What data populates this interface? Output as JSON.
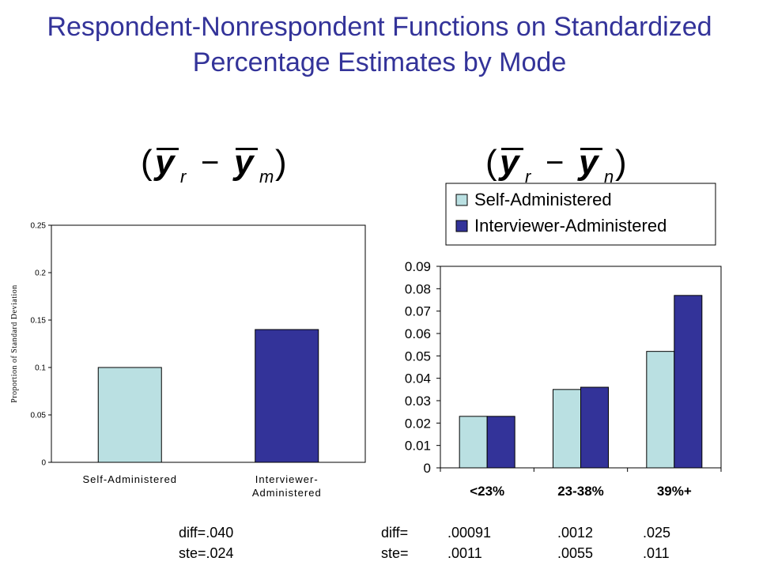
{
  "title": "Respondent-Nonrespondent Functions on Standardized Percentage Estimates by Mode",
  "formulas": {
    "left": {
      "y": "y",
      "sub1": "r",
      "minus": "−",
      "sub2": "m"
    },
    "right": {
      "y": "y",
      "sub1": "r",
      "minus": "−",
      "sub2": "n"
    }
  },
  "colors": {
    "title": "#333399",
    "self": "#BAE0E2",
    "interviewer": "#333399"
  },
  "chart_data": [
    {
      "type": "bar",
      "categories": [
        "Self-Administered",
        "Interviewer-Administered"
      ],
      "category_labels": [
        [
          "Self-Administered"
        ],
        [
          "Interviewer-",
          "Administered"
        ]
      ],
      "values": [
        0.1,
        0.14
      ],
      "ylabel": "Proportion of Standard Deviation",
      "ylim": [
        0,
        0.25
      ],
      "yticks": [
        0,
        0.05,
        0.1,
        0.15,
        0.2,
        0.25
      ],
      "ytick_labels": [
        "0",
        "0.05",
        "0.1",
        "0.15",
        "0.2",
        "0.25"
      ],
      "grid": false,
      "footnote": {
        "diff": "diff=.040",
        "ste": "ste=.024"
      }
    },
    {
      "type": "bar",
      "categories": [
        "<23%",
        "23-38%",
        "39%+"
      ],
      "series": [
        {
          "name": "Self-Administered",
          "values": [
            0.023,
            0.035,
            0.052
          ]
        },
        {
          "name": "Interviewer-Administered",
          "values": [
            0.023,
            0.036,
            0.077
          ]
        }
      ],
      "ylim": [
        0,
        0.09
      ],
      "yticks": [
        0,
        0.01,
        0.02,
        0.03,
        0.04,
        0.05,
        0.06,
        0.07,
        0.08,
        0.09
      ],
      "ytick_labels": [
        "0",
        "0.01",
        "0.02",
        "0.03",
        "0.04",
        "0.05",
        "0.06",
        "0.07",
        "0.08",
        "0.09"
      ],
      "legend": "top-right",
      "grid": false,
      "footnote": {
        "diff_label": "diff=",
        "diff_values": [
          ".00091",
          ".0012",
          ".025"
        ],
        "ste_label": "ste=",
        "ste_values": [
          ".0011",
          ".0055",
          ".011"
        ]
      }
    }
  ]
}
